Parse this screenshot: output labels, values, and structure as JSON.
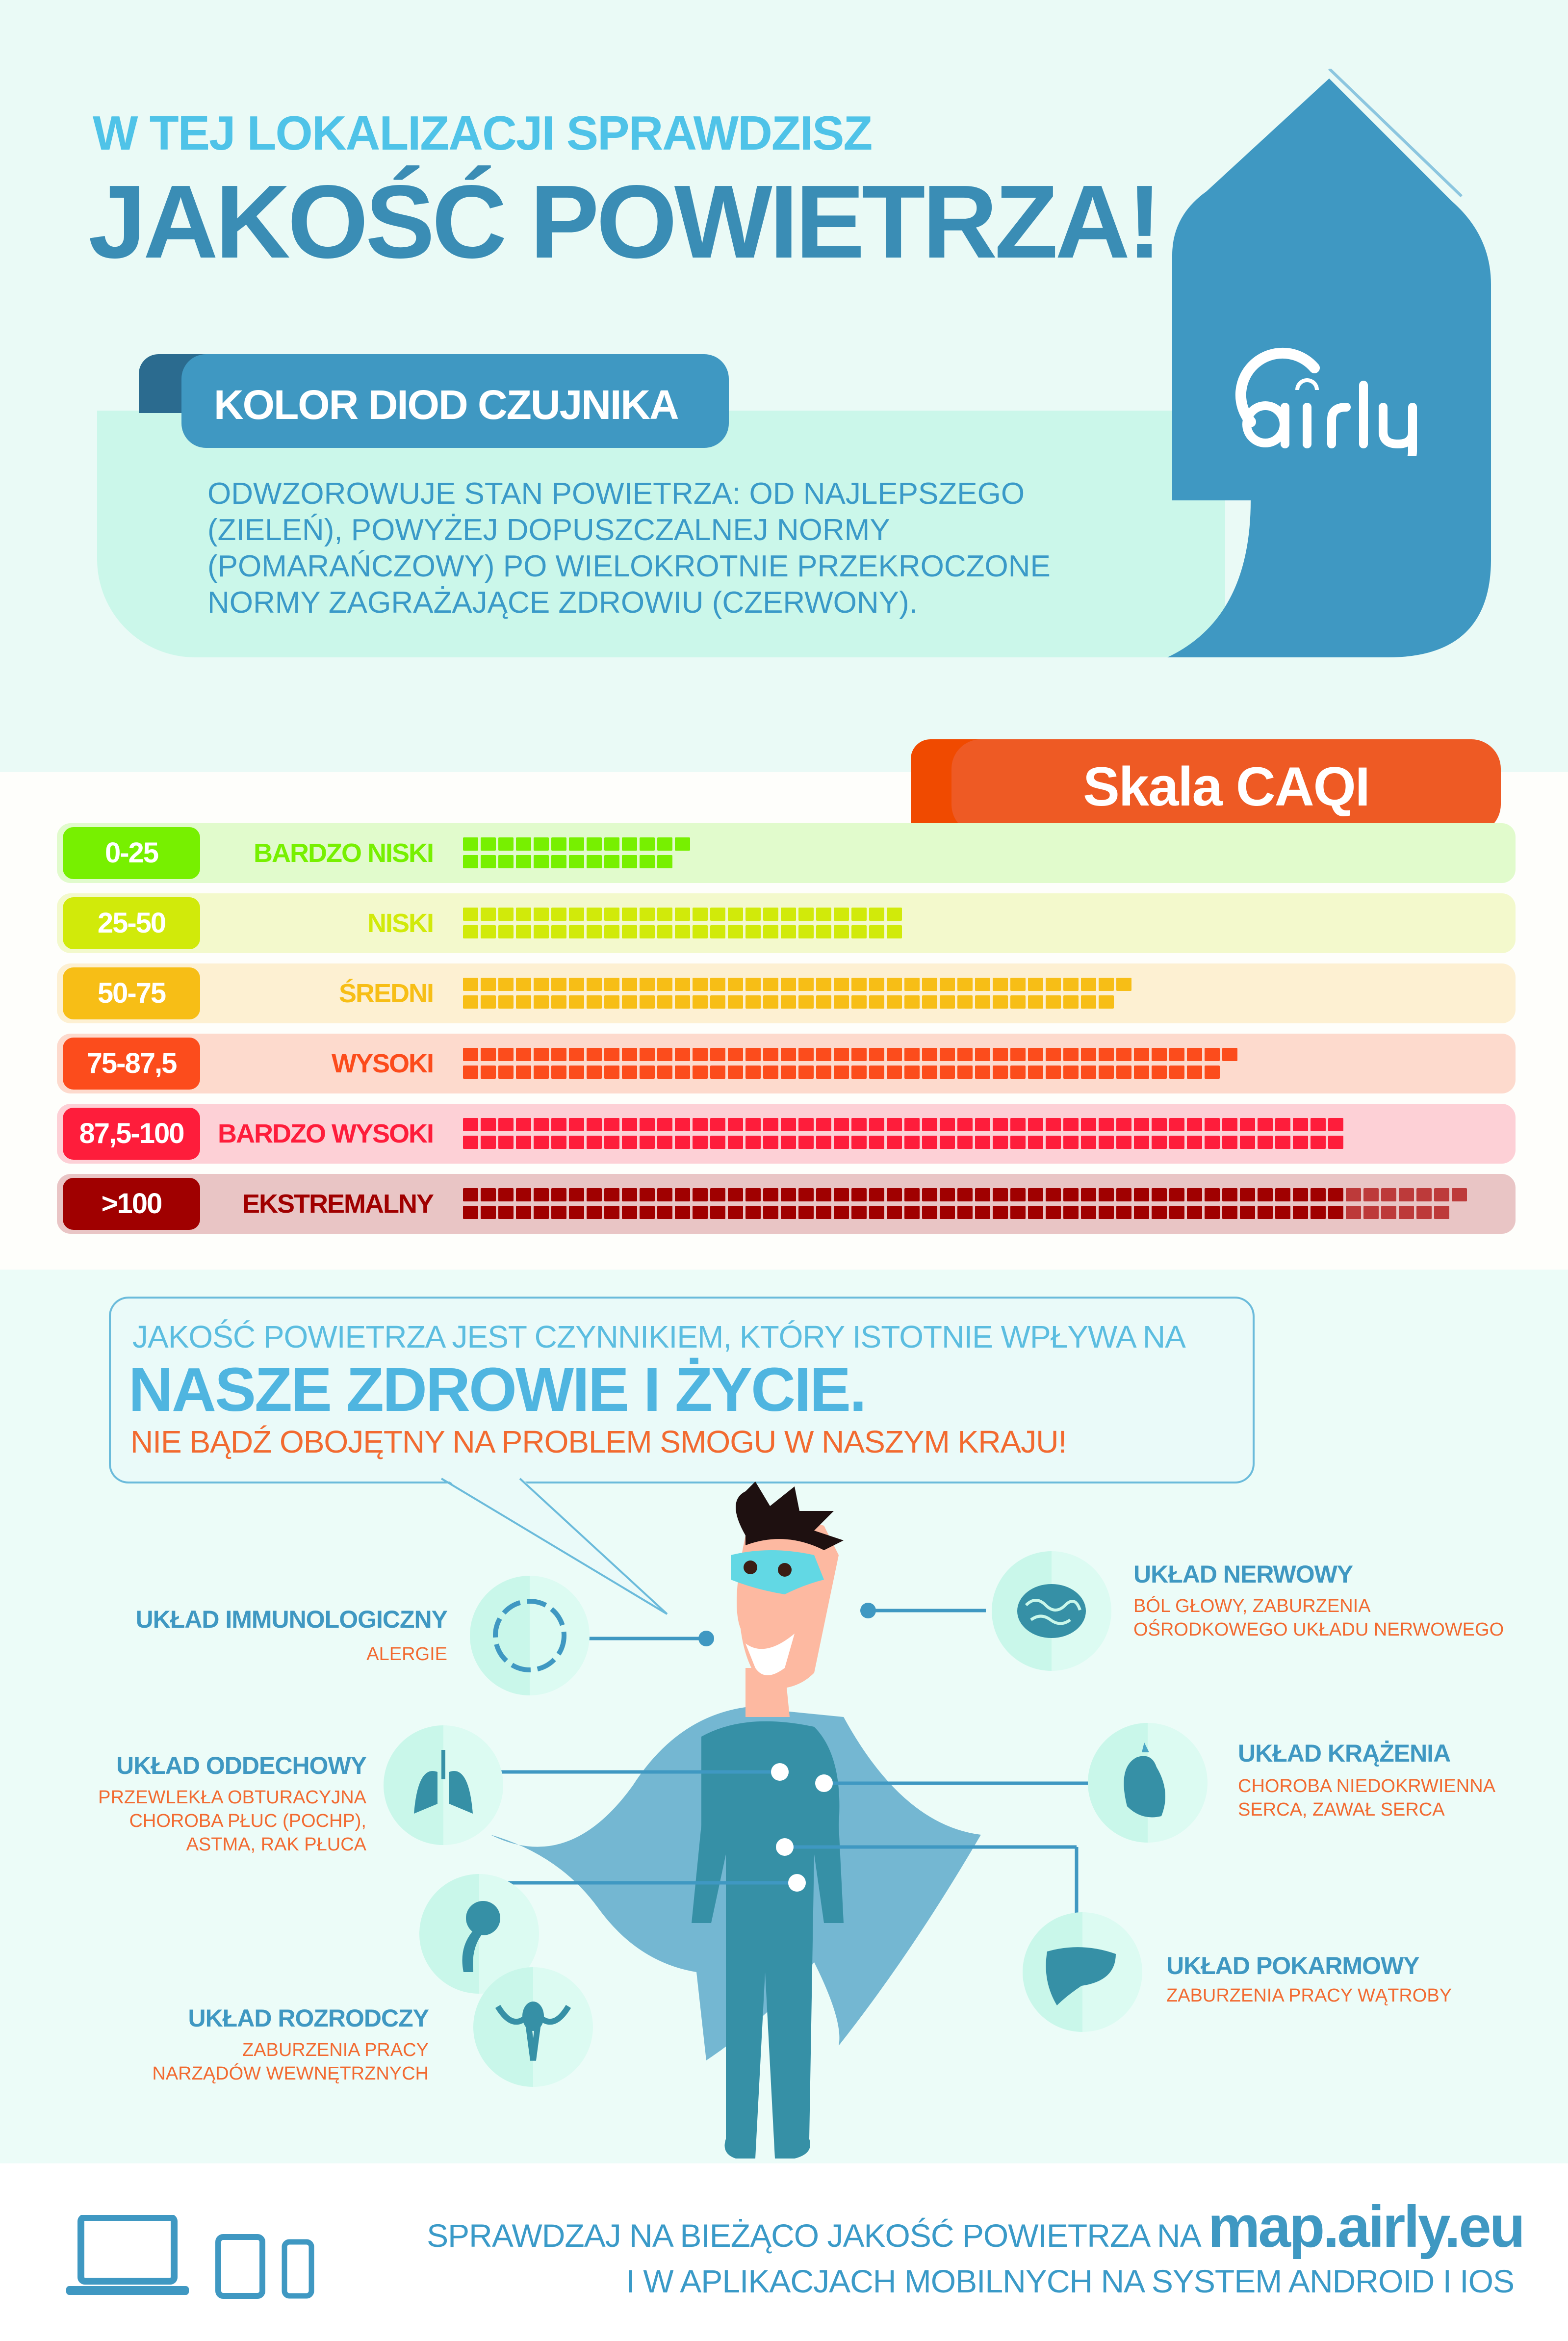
{
  "header": {
    "subtitle": "W TEJ LOKALIZACJI SPRAWDZISZ",
    "title": "JAKOŚĆ POWIETRZA!"
  },
  "brand": {
    "logo_text": "airly",
    "color": "#3f98c2"
  },
  "led_info": {
    "tab_label": "KOLOR DIOD CZUJNIKA",
    "lines": [
      "ODWZOROWUJE STAN POWIETRZA: OD NAJLEPSZEGO",
      "(ZIELEŃ), POWYŻEJ DOPUSZCZALNEJ NORMY",
      "(POMARAŃCZOWY) PO WIELOKROTNIE PRZEKROCZONE",
      "NORMY ZAGRAŻAJĄCE ZDROWIU (CZERWONY)."
    ]
  },
  "caqi": {
    "title": "Skala CAQI",
    "levels": [
      {
        "range": "0-25",
        "label": "BARDZO NISKI",
        "color": "#77f000",
        "bg": "#e1fbcc"
      },
      {
        "range": "25-50",
        "label": "NISKI",
        "color": "#d1ea0a",
        "bg": "#f3f9cc"
      },
      {
        "range": "50-75",
        "label": "ŚREDNI",
        "color": "#f7be16",
        "bg": "#fdf0d2"
      },
      {
        "range": "75-87,5",
        "label": "WYSOKI",
        "color": "#fc4c1c",
        "bg": "#fddacd"
      },
      {
        "range": "87,5-100",
        "label": "BARDZO WYSOKI",
        "color": "#fe1d3b",
        "bg": "#fdd0d6"
      },
      {
        "range": ">100",
        "label": "EKSTREMALNY",
        "color": "#a00000",
        "bg": "#e9c5c5"
      }
    ]
  },
  "health": {
    "line1": "JAKOŚĆ POWIETRZA JEST CZYNNIKIEM, KTÓRY ISTOTNIE WPŁYWA NA",
    "line2": "NASZE ZDROWIE I ŻYCIE.",
    "line3": "NIE BĄDŹ OBOJĘTNY NA PROBLEM SMOGU W NASZYM KRAJU!",
    "systems": {
      "immune": {
        "title": "UKŁAD IMMUNOLOGICZNY",
        "lines": [
          "ALERGIE"
        ]
      },
      "nervous": {
        "title": "UKŁAD NERWOWY",
        "lines": [
          "BÓL GŁOWY,  ZABURZENIA",
          "OŚRODKOWEGO UKŁADU NERWOWEGO"
        ]
      },
      "respiratory": {
        "title": "UKŁAD ODDECHOWY",
        "lines": [
          "PRZEWLEKŁA OBTURACYJNA",
          "CHOROBA PŁUC (POCHP),",
          "ASTMA, RAK PŁUCA"
        ]
      },
      "circulatory": {
        "title": "UKŁAD KRĄŻENIA",
        "lines": [
          "CHOROBA NIEDOKRWIENNA",
          "SERCA, ZAWAŁ SERCA"
        ]
      },
      "digestive": {
        "title": "UKŁAD POKARMOWY",
        "lines": [
          "ZABURZENIA PRACY WĄTROBY"
        ]
      },
      "reproductive": {
        "title": "UKŁAD ROZRODCZY",
        "lines": [
          "ZABURZENIA PRACY",
          "NARZĄDÓW WEWNĘTRZNYCH"
        ]
      }
    }
  },
  "footer": {
    "line1": "SPRAWDZAJ NA BIEŻĄCO JAKOŚĆ POWIETRZA NA",
    "url": "map.airly.eu",
    "line2": "I W APLIKACJACH MOBILNYCH NA SYSTEM ANDROID I IOS"
  }
}
